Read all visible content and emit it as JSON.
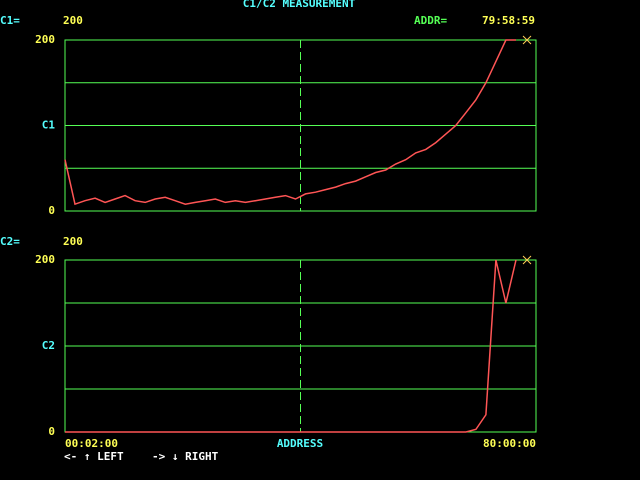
{
  "title": "C1/C2 MEASUREMENT",
  "addr_label": "ADDR=",
  "addr_value": "79:58:59",
  "x_label": "ADDRESS",
  "footer": [
    "<- ↑ LEFT",
    "-> ↓ RIGHT"
  ],
  "chart_data": [
    {
      "type": "line",
      "readout_label": "C1=",
      "readout_value": 200,
      "color": "#ff5555",
      "values": [
        60,
        8,
        12,
        15,
        10,
        14,
        18,
        12,
        10,
        14,
        16,
        12,
        8,
        10,
        12,
        14,
        10,
        12,
        10,
        12,
        14,
        16,
        18,
        14,
        20,
        22,
        25,
        28,
        32,
        35,
        40,
        45,
        48,
        55,
        60,
        68,
        72,
        80,
        90,
        100,
        115,
        130,
        150,
        175,
        200,
        200,
        null,
        null
      ],
      "ylim": [
        0,
        200
      ],
      "yticks": [
        0,
        {
          "value": 100,
          "label": "C1"
        },
        200
      ],
      "grid": true
    },
    {
      "type": "line",
      "readout_label": "C2=",
      "readout_value": 200,
      "color": "#ff5555",
      "categories": [
        "00:02:00",
        null,
        null,
        null,
        null,
        null,
        null,
        null,
        null,
        null,
        null,
        null,
        null,
        null,
        null,
        null,
        null,
        null,
        null,
        null,
        null,
        null,
        null,
        null,
        null,
        null,
        null,
        null,
        null,
        null,
        null,
        null,
        null,
        null,
        null,
        null,
        null,
        null,
        null,
        null,
        null,
        null,
        null,
        null,
        null,
        null,
        null,
        "80:00:00"
      ],
      "values": [
        0,
        0,
        0,
        0,
        0,
        0,
        0,
        0,
        0,
        0,
        0,
        0,
        0,
        0,
        0,
        0,
        0,
        0,
        0,
        0,
        0,
        0,
        0,
        0,
        0,
        0,
        0,
        0,
        0,
        0,
        0,
        0,
        0,
        0,
        0,
        0,
        0,
        0,
        0,
        0,
        0,
        3,
        20,
        200,
        150,
        200,
        null,
        null
      ],
      "ylim": [
        0,
        200
      ],
      "yticks": [
        0,
        {
          "value": 100,
          "label": "C2"
        },
        200
      ],
      "grid": true
    }
  ]
}
